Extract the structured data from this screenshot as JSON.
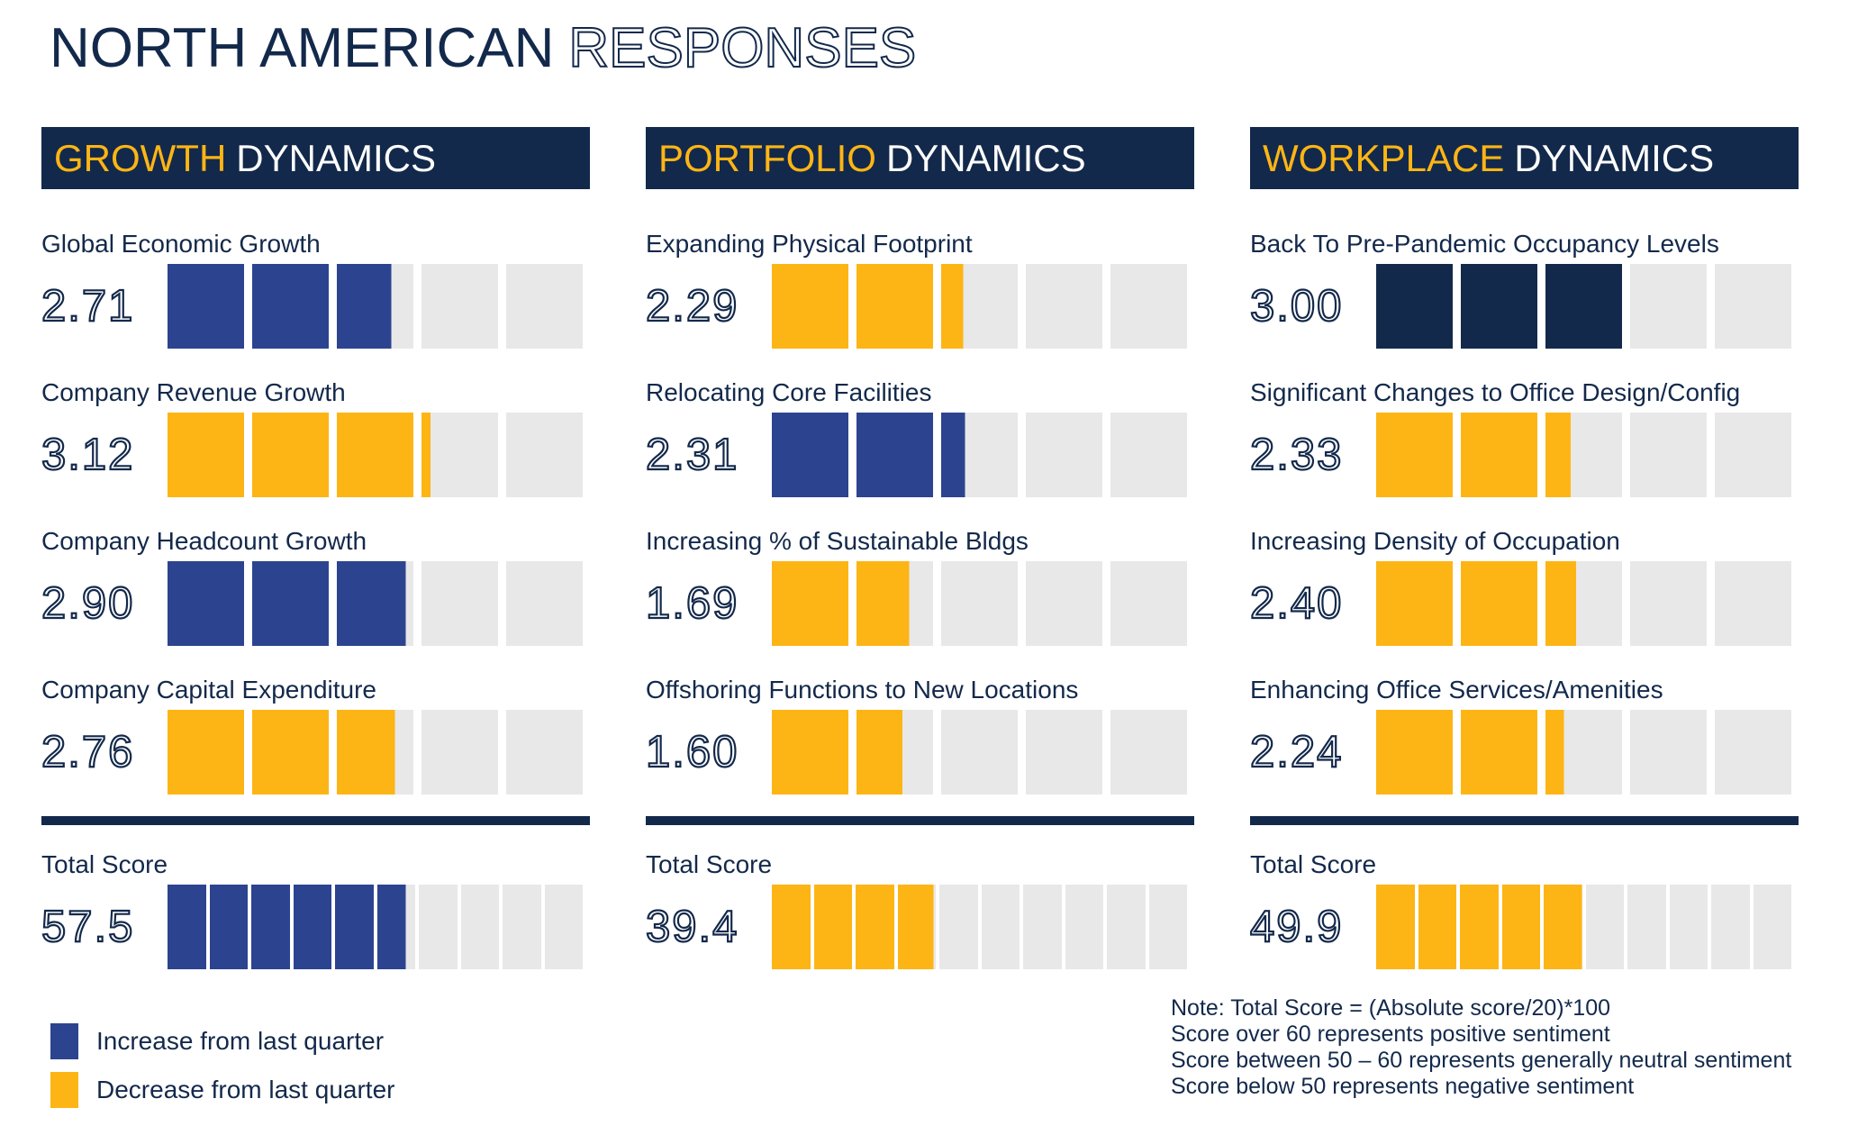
{
  "title": {
    "primary": "NORTH AMERICAN",
    "outlined": "RESPONSES"
  },
  "colors": {
    "navy": "#13294b",
    "blue": "#2c4390",
    "yellow": "#fdb515",
    "gray": "#e8e8e8",
    "white": "#ffffff"
  },
  "legend": {
    "items": [
      {
        "color_key": "blue",
        "label": "Increase from last quarter"
      },
      {
        "color_key": "yellow",
        "label": "Decrease from last quarter"
      }
    ]
  },
  "note": {
    "lines": [
      "Note: Total Score = (Absolute score/20)*100",
      "Score over 60 represents positive sentiment",
      "Score between 50 – 60 represents generally neutral sentiment",
      "Score below 50 represents negative sentiment"
    ]
  },
  "chart_data": {
    "type": "bar",
    "style": "segmented-progress",
    "groups": [
      {
        "header": {
          "highlight": "GROWTH",
          "rest": "DYNAMICS"
        },
        "metrics": [
          {
            "label": "Global Economic Growth",
            "display": "2.71",
            "value": 2.71,
            "max": 5,
            "segments": 5,
            "direction": "increase",
            "color_key": "blue"
          },
          {
            "label": "Company Revenue Growth",
            "display": "3.12",
            "value": 3.12,
            "max": 5,
            "segments": 5,
            "direction": "decrease",
            "color_key": "yellow"
          },
          {
            "label": "Company Headcount Growth",
            "display": "2.90",
            "value": 2.9,
            "max": 5,
            "segments": 5,
            "direction": "increase",
            "color_key": "blue"
          },
          {
            "label": "Company Capital Expenditure",
            "display": "2.76",
            "value": 2.76,
            "max": 5,
            "segments": 5,
            "direction": "decrease",
            "color_key": "yellow"
          }
        ],
        "total": {
          "label": "Total Score",
          "display": "57.5",
          "value": 57.5,
          "max": 100,
          "segments": 10,
          "color_key": "blue"
        }
      },
      {
        "header": {
          "highlight": "PORTFOLIO",
          "rest": "DYNAMICS"
        },
        "metrics": [
          {
            "label": "Expanding Physical Footprint",
            "display": "2.29",
            "value": 2.29,
            "max": 5,
            "segments": 5,
            "direction": "decrease",
            "color_key": "yellow"
          },
          {
            "label": "Relocating Core Facilities",
            "display": "2.31",
            "value": 2.31,
            "max": 5,
            "segments": 5,
            "direction": "increase",
            "color_key": "blue"
          },
          {
            "label": "Increasing % of Sustainable Bldgs",
            "display": "1.69",
            "value": 1.69,
            "max": 5,
            "segments": 5,
            "direction": "decrease",
            "color_key": "yellow"
          },
          {
            "label": "Offshoring Functions to New Locations",
            "display": "1.60",
            "value": 1.6,
            "max": 5,
            "segments": 5,
            "direction": "decrease",
            "color_key": "yellow"
          }
        ],
        "total": {
          "label": "Total Score",
          "display": "39.4",
          "value": 39.4,
          "max": 100,
          "segments": 10,
          "color_key": "yellow"
        }
      },
      {
        "header": {
          "highlight": "WORKPLACE",
          "rest": "DYNAMICS"
        },
        "metrics": [
          {
            "label": "Back To Pre-Pandemic Occupancy Levels",
            "display": "3.00",
            "value": 3.0,
            "max": 5,
            "segments": 5,
            "direction": "unchanged",
            "color_key": "navy"
          },
          {
            "label": "Significant Changes to Office Design/Config",
            "display": "2.33",
            "value": 2.33,
            "max": 5,
            "segments": 5,
            "direction": "decrease",
            "color_key": "yellow"
          },
          {
            "label": "Increasing Density of Occupation",
            "display": "2.40",
            "value": 2.4,
            "max": 5,
            "segments": 5,
            "direction": "decrease",
            "color_key": "yellow"
          },
          {
            "label": "Enhancing Office Services/Amenities",
            "display": "2.24",
            "value": 2.24,
            "max": 5,
            "segments": 5,
            "direction": "decrease",
            "color_key": "yellow"
          }
        ],
        "total": {
          "label": "Total Score",
          "display": "49.9",
          "value": 49.9,
          "max": 100,
          "segments": 10,
          "color_key": "yellow"
        }
      }
    ]
  }
}
